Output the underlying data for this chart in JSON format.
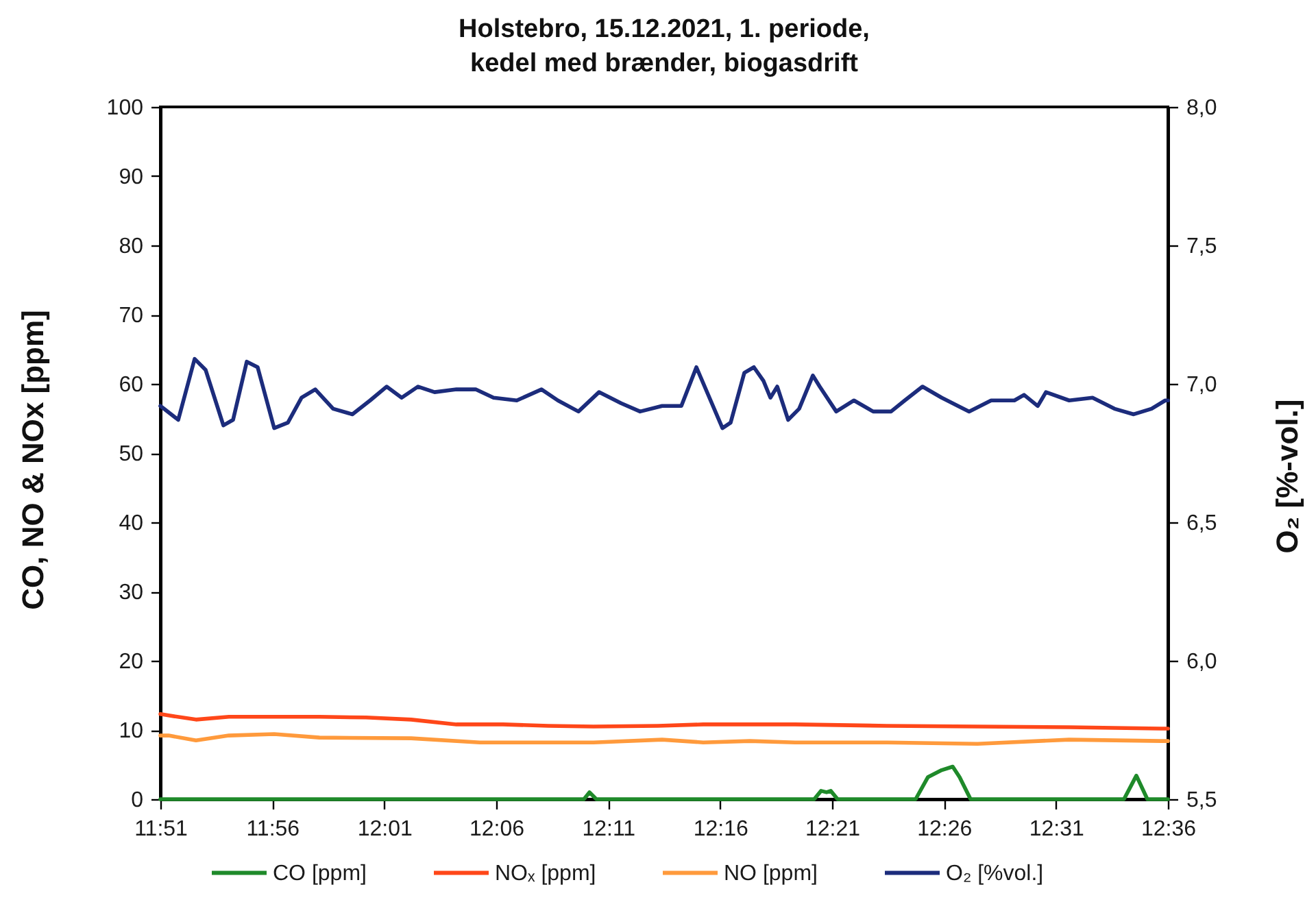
{
  "chart_data": {
    "type": "line",
    "title": "Holstebro, 15.12.2021, 1. periode,\nkedel med brænder, biogasdrift",
    "ylabel": "CO, NO & NOx [ppm]",
    "y2label": "O₂ [%-vol.]",
    "xlim": [
      11.85,
      12.6
    ],
    "xticks": [
      {
        "value": 11.85,
        "label": "11:51"
      },
      {
        "value": 11.9333,
        "label": "11:56"
      },
      {
        "value": 12.0167,
        "label": "12:01"
      },
      {
        "value": 12.1,
        "label": "12:06"
      },
      {
        "value": 12.1833,
        "label": "12:11"
      },
      {
        "value": 12.2667,
        "label": "12:16"
      },
      {
        "value": 12.35,
        "label": "12:21"
      },
      {
        "value": 12.4333,
        "label": "12:26"
      },
      {
        "value": 12.5167,
        "label": "12:31"
      },
      {
        "value": 12.6,
        "label": "12:36"
      }
    ],
    "ylim": [
      0,
      100
    ],
    "yticks": [
      0,
      10,
      20,
      30,
      40,
      50,
      60,
      70,
      80,
      90,
      100
    ],
    "y2lim": [
      5.5,
      8.0
    ],
    "y2ticks": [
      {
        "value": 5.5,
        "label": "5,5"
      },
      {
        "value": 6.0,
        "label": "6,0"
      },
      {
        "value": 6.5,
        "label": "6,5"
      },
      {
        "value": 7.0,
        "label": "7,0"
      },
      {
        "value": 7.5,
        "label": "7,5"
      },
      {
        "value": 8.0,
        "label": "8,0"
      }
    ],
    "grid": false,
    "legend": "bottom",
    "line_style": "solid",
    "series": [
      {
        "name": "CO [ppm]",
        "color": "#1f8a2a",
        "x": [
          11.85,
          12.1653,
          12.1694,
          12.1745,
          12.3367,
          12.3418,
          12.3459,
          12.349,
          12.3541,
          12.4122,
          12.4214,
          12.4316,
          12.4398,
          12.4449,
          12.4531,
          12.5673,
          12.5765,
          12.5847,
          12.6
        ],
        "values": [
          0,
          0,
          1,
          0,
          0,
          1.2,
          1,
          1.2,
          0,
          0,
          3.2,
          4.2,
          4.7,
          3.2,
          0,
          0,
          3.4,
          0,
          0
        ]
      },
      {
        "name": "NOₓ [ppm]",
        "color": "#ff4719",
        "x": [
          11.85,
          11.8561,
          11.8765,
          11.901,
          11.9347,
          11.9684,
          12.0031,
          12.0367,
          12.0704,
          12.1051,
          12.1388,
          12.1724,
          12.2204,
          12.2541,
          12.3224,
          12.3908,
          12.4582,
          12.5265,
          12.5602,
          12.5949,
          12.6
        ],
        "values": [
          12.3,
          12.1,
          11.5,
          11.9,
          11.9,
          11.9,
          11.8,
          11.5,
          10.8,
          10.8,
          10.6,
          10.5,
          10.6,
          10.8,
          10.8,
          10.6,
          10.5,
          10.4,
          10.3,
          10.2,
          10.2
        ]
      },
      {
        "name": "NO [ppm]",
        "color": "#ff9a3c",
        "x": [
          11.85,
          11.8561,
          11.8765,
          11.901,
          11.9347,
          11.9684,
          12.0367,
          12.0878,
          12.1388,
          12.1724,
          12.2235,
          12.2541,
          12.2888,
          12.3224,
          12.3908,
          12.4582,
          12.5265,
          12.5949,
          12.6
        ],
        "values": [
          9.2,
          9.2,
          8.5,
          9.2,
          9.4,
          8.9,
          8.8,
          8.2,
          8.2,
          8.2,
          8.6,
          8.2,
          8.4,
          8.2,
          8.2,
          8.0,
          8.6,
          8.4,
          8.4
        ]
      },
      {
        "name": "O₂ [%vol.]",
        "color": "#1c2c7c",
        "axis": "y2",
        "x": [
          11.85,
          11.8633,
          11.8755,
          11.8837,
          11.8969,
          11.9041,
          11.9143,
          11.9224,
          11.9347,
          11.9449,
          11.9551,
          11.9653,
          11.9786,
          11.9929,
          12.0061,
          12.0184,
          12.0296,
          12.0418,
          12.0541,
          12.0704,
          12.0847,
          12.098,
          12.1153,
          12.1337,
          12.1459,
          12.1612,
          12.1765,
          12.1929,
          12.2071,
          12.2235,
          12.2378,
          12.249,
          12.2684,
          12.2745,
          12.2847,
          12.2918,
          12.299,
          12.3041,
          12.3092,
          12.3173,
          12.3255,
          12.3357,
          12.3408,
          12.3531,
          12.3663,
          12.3806,
          12.3939,
          12.4041,
          12.4173,
          12.4316,
          12.452,
          12.4684,
          12.4857,
          12.4929,
          12.5031,
          12.5092,
          12.5265,
          12.5439,
          12.5602,
          12.5745,
          12.5878,
          12.598,
          12.6
        ],
        "values": [
          6.92,
          6.87,
          7.09,
          7.05,
          6.85,
          6.87,
          7.08,
          7.06,
          6.84,
          6.86,
          6.95,
          6.98,
          6.91,
          6.89,
          6.94,
          6.99,
          6.95,
          6.99,
          6.97,
          6.98,
          6.98,
          6.95,
          6.94,
          6.98,
          6.94,
          6.9,
          6.97,
          6.93,
          6.9,
          6.92,
          6.92,
          7.06,
          6.84,
          6.86,
          7.04,
          7.06,
          7.01,
          6.95,
          6.99,
          6.87,
          6.91,
          7.03,
          6.99,
          6.9,
          6.94,
          6.9,
          6.9,
          6.94,
          6.99,
          6.95,
          6.9,
          6.94,
          6.94,
          6.96,
          6.92,
          6.97,
          6.94,
          6.95,
          6.91,
          6.89,
          6.91,
          6.94,
          6.94
        ]
      }
    ]
  }
}
